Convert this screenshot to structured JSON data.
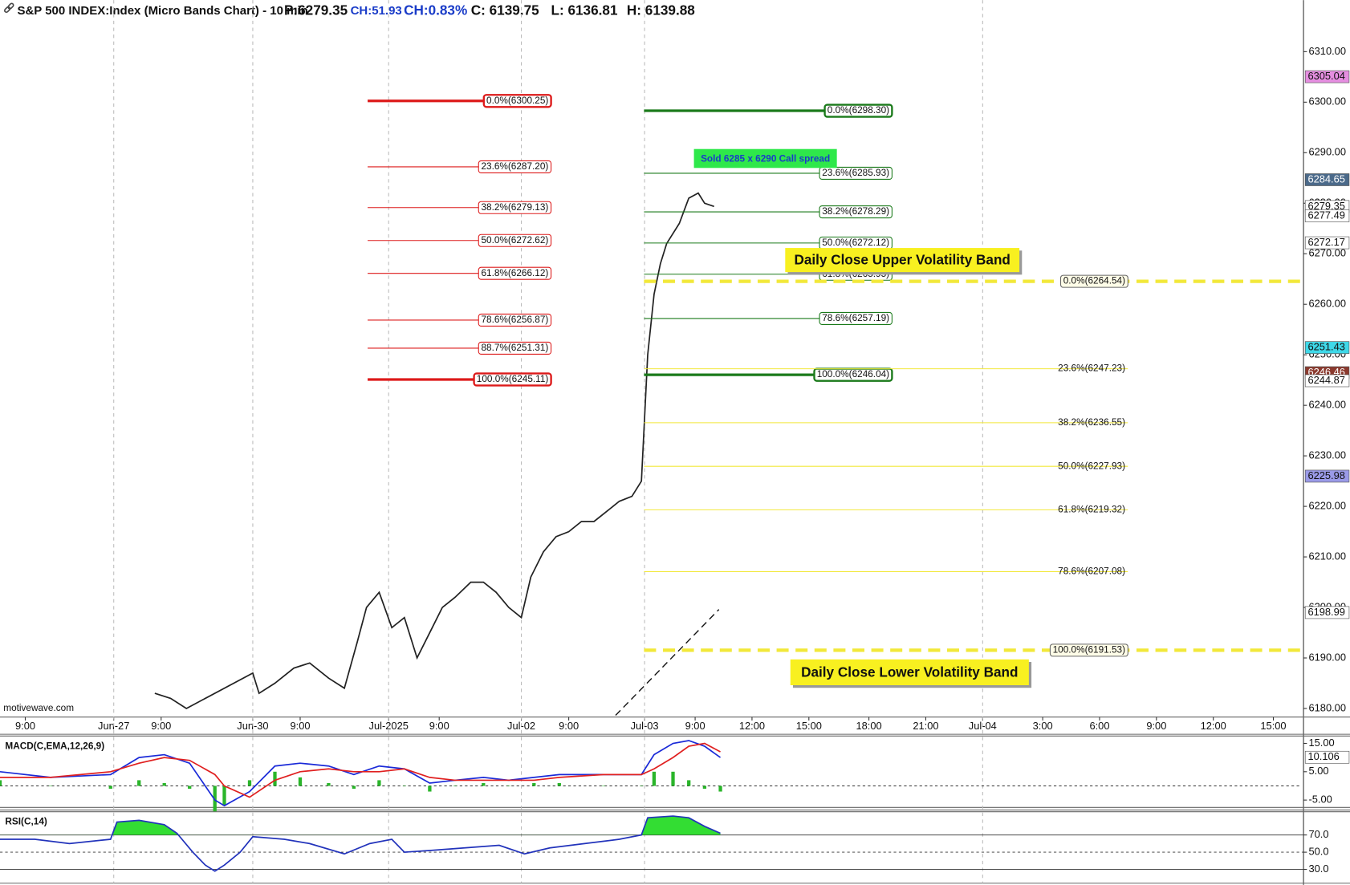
{
  "header": {
    "title": "S&P 500 INDEX:Index (Micro Bands Chart) - 10 min",
    "stats": [
      "P:6279.35",
      "CH:51.93",
      "CH:0.83%",
      "C: 6139.75",
      "L: 6136.81",
      "H: 6139.88"
    ]
  },
  "chart_data": [
    {
      "type": "line",
      "color": "#222222",
      "x": [
        49,
        54,
        59,
        80,
        82,
        87,
        93,
        98,
        104,
        109,
        113,
        116,
        120,
        124,
        128,
        132,
        136,
        140,
        144,
        149,
        153,
        157,
        161,
        165,
        168,
        172,
        176,
        180,
        184,
        188,
        192,
        196,
        200,
        203,
        205,
        207,
        209,
        211,
        215,
        218,
        221,
        223,
        226
      ],
      "values": [
        6183,
        6182,
        6180,
        6187,
        6183,
        6185,
        6188,
        6189,
        6186,
        6184,
        6193,
        6200,
        6203,
        6196,
        6198,
        6190,
        6195,
        6200,
        6202,
        6205,
        6205,
        6203,
        6200,
        6198,
        6206,
        6211,
        6214,
        6215,
        6217,
        6217,
        6219,
        6221,
        6222,
        6225,
        6250,
        6262,
        6268,
        6272,
        6276,
        6281,
        6282,
        6280,
        6279.35
      ],
      "xlim": [
        0,
        412
      ],
      "ylim": [
        6178.3,
        6320.2
      ],
      "xticks": [
        {
          "value": 8,
          "label": "9:00"
        },
        {
          "value": 36,
          "label": "Jun-27"
        },
        {
          "value": 51,
          "label": "9:00"
        },
        {
          "value": 80,
          "label": "Jun-30"
        },
        {
          "value": 95,
          "label": "9:00"
        },
        {
          "value": 123,
          "label": "Jul-2025"
        },
        {
          "value": 139,
          "label": "9:00"
        },
        {
          "value": 165,
          "label": "Jul-02"
        },
        {
          "value": 180,
          "label": "9:00"
        },
        {
          "value": 204,
          "label": "Jul-03"
        },
        {
          "value": 220,
          "label": "9:00"
        },
        {
          "value": 238,
          "label": "12:00"
        },
        {
          "value": 256,
          "label": "15:00"
        },
        {
          "value": 275,
          "label": "18:00"
        },
        {
          "value": 293,
          "label": "21:00"
        },
        {
          "value": 311,
          "label": "Jul-04"
        },
        {
          "value": 330,
          "label": "3:00"
        },
        {
          "value": 348,
          "label": "6:00"
        },
        {
          "value": 366,
          "label": "9:00"
        },
        {
          "value": 384,
          "label": "12:00"
        },
        {
          "value": 403,
          "label": "15:00"
        }
      ],
      "yticks": [
        {
          "value": 6180,
          "label": "6180.00"
        },
        {
          "value": 6190,
          "label": "6190.00"
        },
        {
          "value": 6200,
          "label": "6200.00"
        },
        {
          "value": 6210,
          "label": "6210.00"
        },
        {
          "value": 6220,
          "label": "6220.00"
        },
        {
          "value": 6230,
          "label": "6230.00"
        },
        {
          "value": 6240,
          "label": "6240.00"
        },
        {
          "value": 6250,
          "label": "6250.00"
        },
        {
          "value": 6260,
          "label": "6260.00"
        },
        {
          "value": 6270,
          "label": "6270.00"
        },
        {
          "value": 6280,
          "label": "6280.00"
        },
        {
          "value": 6290,
          "label": "6290.00"
        },
        {
          "value": 6300,
          "label": "6300.00"
        },
        {
          "value": 6310,
          "label": "6310.00"
        }
      ],
      "price_markers": [
        {
          "value": 6305.04,
          "color": "#e58ee0"
        },
        {
          "value": 6284.65,
          "color": "#4b6a8a"
        },
        {
          "value": 6279.35,
          "color": "#ffffff"
        },
        {
          "value": 6277.49,
          "color": "#ffffff"
        },
        {
          "value": 6272.17,
          "color": "#ffffff"
        },
        {
          "value": 6251.43,
          "color": "#3fd8e8"
        },
        {
          "value": 6246.46,
          "color": "#8b3a2e"
        },
        {
          "value": 6244.87,
          "color": "#ffffff"
        },
        {
          "value": 6225.98,
          "color": "#9a9ae8"
        },
        {
          "value": 6198.99,
          "color": "#ffffff"
        }
      ],
      "fib_sets": [
        {
          "color": "#dd1a1a",
          "levels": [
            {
              "value": 6300.25,
              "label": "0.0%(6300.25)"
            },
            {
              "value": 6287.2,
              "label": "23.6%(6287.20)"
            },
            {
              "value": 6279.13,
              "label": "38.2%(6279.13)"
            },
            {
              "value": 6272.62,
              "label": "50.0%(6272.62)"
            },
            {
              "value": 6266.12,
              "label": "61.8%(6266.12)"
            },
            {
              "value": 6256.87,
              "label": "78.6%(6256.87)"
            },
            {
              "value": 6251.31,
              "label": "88.7%(6251.31)"
            },
            {
              "value": 6245.11,
              "label": "100.0%(6245.11)"
            }
          ]
        },
        {
          "color": "#1a7a1a",
          "levels": [
            {
              "value": 6298.3,
              "label": "0.0%(6298.30)"
            },
            {
              "value": 6285.93,
              "label": "23.6%(6285.93)"
            },
            {
              "value": 6278.29,
              "label": "38.2%(6278.29)"
            },
            {
              "value": 6272.12,
              "label": "50.0%(6272.12)"
            },
            {
              "value": 6265.95,
              "label": "61.8%(6265.95)"
            },
            {
              "value": 6257.19,
              "label": "78.6%(6257.19)"
            },
            {
              "value": 6246.04,
              "label": "100.0%(6246.04)"
            }
          ]
        },
        {
          "color": "#f2e83a",
          "levels": [
            {
              "value": 6264.54,
              "label": "0.0%(6264.54)"
            },
            {
              "value": 6247.23,
              "label": "23.6%(6247.23)"
            },
            {
              "value": 6236.55,
              "label": "38.2%(6236.55)"
            },
            {
              "value": 6227.93,
              "label": "50.0%(6227.93)"
            },
            {
              "value": 6219.32,
              "label": "61.8%(6219.32)"
            },
            {
              "value": 6207.08,
              "label": "78.6%(6207.08)"
            },
            {
              "value": 6191.53,
              "label": "100.0%(6191.53)"
            }
          ]
        }
      ],
      "annotations": [
        "Sold 6285 x 6290 Call spread",
        "Daily Close Upper Volatility Band",
        "Daily Close Lower Volatility Band"
      ],
      "watermark": "motivewave.com"
    },
    {
      "type": "line",
      "title": "MACD(C,EMA,12,26,9)",
      "x": [
        0,
        16,
        35,
        44,
        52,
        60,
        68,
        71,
        79,
        87,
        95,
        104,
        112,
        120,
        128,
        136,
        144,
        153,
        161,
        169,
        177,
        191,
        203,
        207,
        213,
        218,
        223,
        228
      ],
      "series": [
        {
          "color": "#2ab52a",
          "style": "bar",
          "values": [
            2,
            0,
            -1,
            2,
            1,
            -1,
            -9,
            -7,
            2,
            5,
            3,
            1,
            -1,
            2,
            0,
            -2,
            0,
            1,
            0,
            1,
            1,
            0,
            0,
            5,
            5,
            2,
            -1,
            -2
          ]
        },
        {
          "color": "#1a2ad8",
          "values": [
            5,
            3,
            4,
            10,
            11,
            8,
            -5,
            -7,
            -2,
            7,
            8,
            7,
            4,
            7,
            6,
            1,
            2,
            3,
            2,
            3,
            4,
            4,
            4,
            11,
            15,
            16,
            14,
            10
          ]
        },
        {
          "color": "#e02020",
          "values": [
            3,
            3,
            5,
            8,
            10,
            9,
            4,
            0,
            -4,
            2,
            5,
            6,
            5,
            5,
            6,
            3,
            2,
            2,
            2,
            2,
            3,
            4,
            4,
            6,
            10,
            14,
            15,
            12
          ]
        }
      ],
      "xlim": [
        0,
        412
      ],
      "ylim": [
        -7.6,
        17.6
      ],
      "yticks": [
        {
          "value": 15,
          "label": "15.00"
        },
        {
          "value": 5,
          "label": "5.00"
        },
        {
          "value": -5,
          "label": "-5.00"
        }
      ],
      "price_markers": [
        {
          "value": 10.106,
          "color": "#ffffff"
        }
      ]
    },
    {
      "type": "line",
      "title": "RSI(C,14)",
      "x": [
        0,
        11,
        22,
        35,
        37,
        44,
        52,
        56,
        61,
        65,
        68,
        71,
        76,
        80,
        90,
        98,
        109,
        117,
        124,
        128,
        136,
        147,
        158,
        166,
        174,
        185,
        196,
        203,
        205,
        213,
        218,
        223,
        228
      ],
      "series": [
        {
          "color": "#2233bb",
          "fill": "#33dd33",
          "values": [
            65,
            65,
            60,
            65,
            85,
            87,
            82,
            72,
            50,
            35,
            28,
            35,
            50,
            68,
            65,
            60,
            48,
            60,
            65,
            50,
            52,
            55,
            58,
            48,
            55,
            60,
            65,
            70,
            90,
            92,
            90,
            80,
            72
          ]
        }
      ],
      "xlim": [
        0,
        412
      ],
      "ylim": [
        14,
        97
      ],
      "yticks": [
        {
          "value": 70,
          "label": "70.0"
        },
        {
          "value": 50,
          "label": "50.0"
        },
        {
          "value": 30,
          "label": "30.0"
        }
      ]
    }
  ]
}
